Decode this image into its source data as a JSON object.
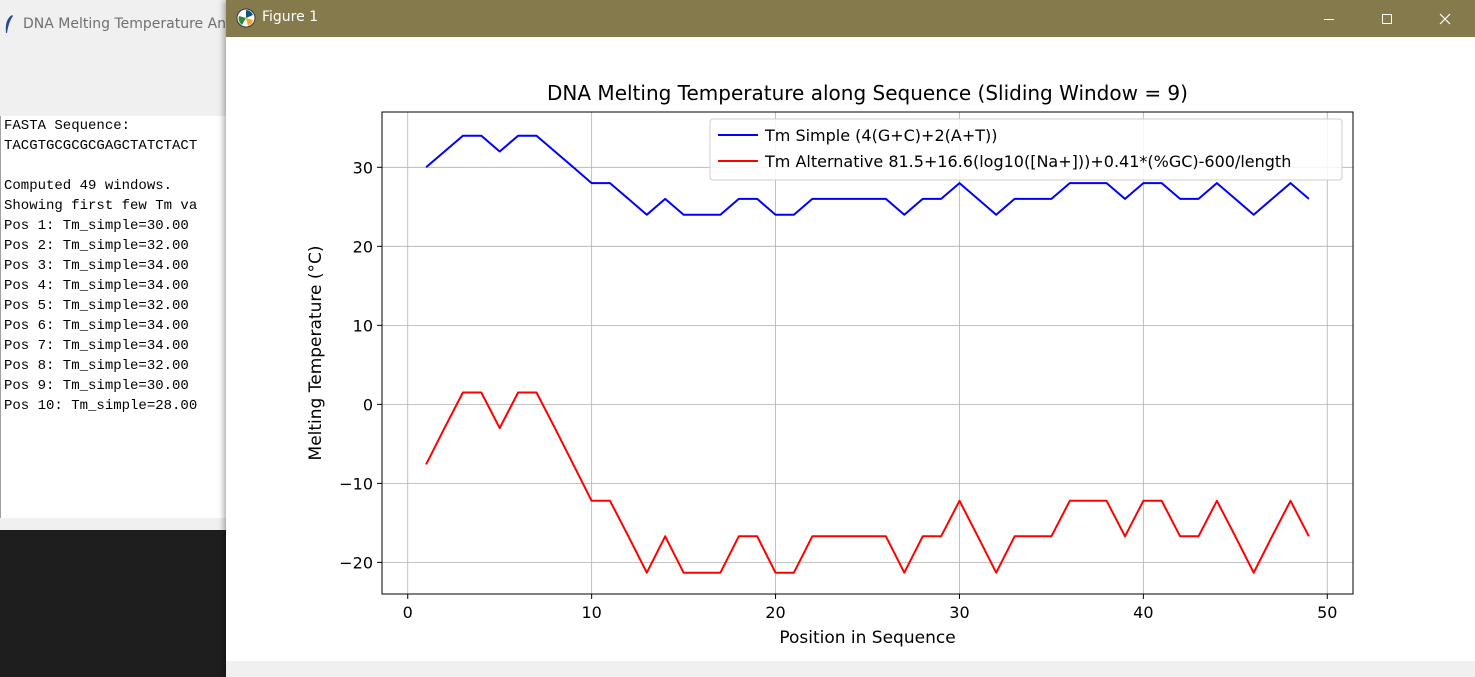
{
  "background_window": {
    "title": "DNA Melting Temperature Ana",
    "lines": [
      "FASTA Sequence:",
      "TACGTGCGCGCGAGCTATCTACT",
      "",
      "Computed 49 windows.",
      "Showing first few Tm va",
      "Pos 1: Tm_simple=30.00",
      "Pos 2: Tm_simple=32.00",
      "Pos 3: Tm_simple=34.00",
      "Pos 4: Tm_simple=34.00",
      "Pos 5: Tm_simple=32.00",
      "Pos 6: Tm_simple=34.00",
      "Pos 7: Tm_simple=34.00",
      "Pos 8: Tm_simple=32.00",
      "Pos 9: Tm_simple=30.00",
      "Pos 10: Tm_simple=28.00"
    ]
  },
  "figure_window": {
    "title": "Figure 1",
    "controls": {
      "minimize_icon": "minimize-icon",
      "maximize_icon": "maximize-icon",
      "close_icon": "close-icon"
    }
  },
  "colors": {
    "titlebar": "#857a4b",
    "series_simple": "#0000ff",
    "series_alt": "#ff0000"
  },
  "chart_data": {
    "type": "line",
    "title": "DNA Melting Temperature along Sequence (Sliding Window = 9)",
    "xlabel": "Position in Sequence",
    "ylabel": "Melting Temperature (°C)",
    "xlim": [
      -1.4,
      51.4
    ],
    "ylim": [
      -24,
      37
    ],
    "xticks": [
      0,
      10,
      20,
      30,
      40,
      50
    ],
    "yticks": [
      -20,
      -10,
      0,
      10,
      20,
      30
    ],
    "xtick_labels": [
      "0",
      "10",
      "20",
      "30",
      "40",
      "50"
    ],
    "ytick_labels": [
      "−20",
      "−10",
      "0",
      "10",
      "20",
      "30"
    ],
    "grid": true,
    "legend_position": "top-right",
    "x": [
      1,
      2,
      3,
      4,
      5,
      6,
      7,
      8,
      9,
      10,
      11,
      12,
      13,
      14,
      15,
      16,
      17,
      18,
      19,
      20,
      21,
      22,
      23,
      24,
      25,
      26,
      27,
      28,
      29,
      30,
      31,
      32,
      33,
      34,
      35,
      36,
      37,
      38,
      39,
      40,
      41,
      42,
      43,
      44,
      45,
      46,
      47,
      48,
      49
    ],
    "series": [
      {
        "name": "Tm Simple (4(G+C)+2(A+T))",
        "color": "#0000ff",
        "values": [
          30,
          32,
          34,
          34,
          32,
          34,
          34,
          32,
          30,
          28,
          28,
          26,
          24,
          26,
          24,
          24,
          24,
          26,
          26,
          24,
          24,
          26,
          26,
          26,
          26,
          26,
          24,
          26,
          26,
          28,
          26,
          24,
          26,
          26,
          26,
          28,
          28,
          28,
          26,
          28,
          28,
          26,
          26,
          28,
          26,
          24,
          26,
          28,
          26
        ]
      },
      {
        "name": "Tm Alternative 81.5+16.6(log10([Na+]))+0.41*(%GC)-600/length",
        "color": "#ff0000",
        "values": [
          -7.6,
          -3.0,
          1.5,
          1.5,
          -3.0,
          1.5,
          1.5,
          -3.0,
          -7.6,
          -12.2,
          -12.2,
          -16.7,
          -21.3,
          -16.7,
          -21.3,
          -21.3,
          -21.3,
          -16.7,
          -16.7,
          -21.3,
          -21.3,
          -16.7,
          -16.7,
          -16.7,
          -16.7,
          -16.7,
          -21.3,
          -16.7,
          -16.7,
          -12.2,
          -16.7,
          -21.3,
          -16.7,
          -16.7,
          -16.7,
          -12.2,
          -12.2,
          -12.2,
          -16.7,
          -12.2,
          -12.2,
          -16.7,
          -16.7,
          -12.2,
          -16.7,
          -21.3,
          -16.7,
          -12.2,
          -16.7
        ]
      }
    ]
  }
}
